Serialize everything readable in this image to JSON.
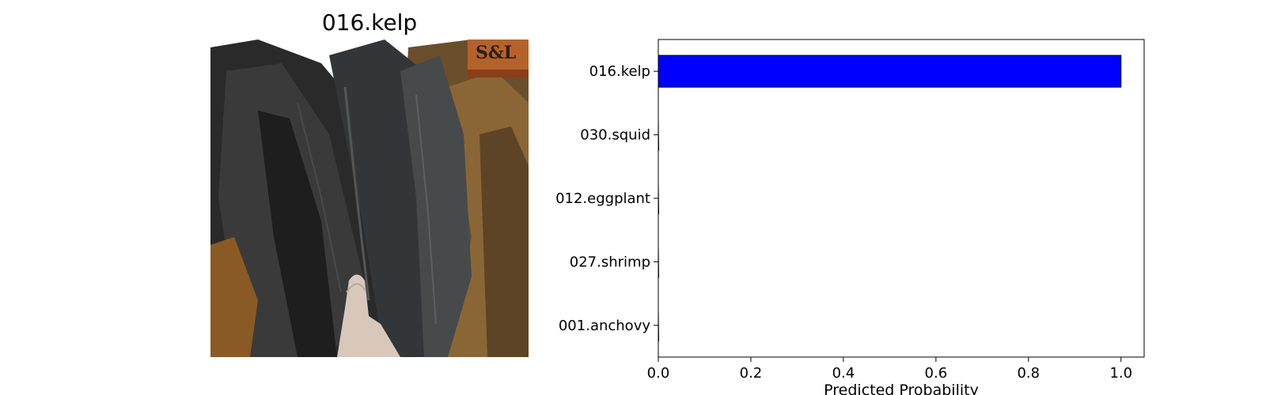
{
  "image_panel": {
    "title": "016.kelp",
    "photo_subject": "dried kelp sheets",
    "logo_text": "S&L",
    "colors": {
      "kelp_dark": "#2b2b2b",
      "kelp_brown": "#7a5a32",
      "hand": "#d8c8bc",
      "logo_bg": "#b5622a"
    }
  },
  "chart_data": {
    "type": "bar",
    "orientation": "horizontal",
    "categories": [
      "016.kelp",
      "030.squid",
      "012.eggplant",
      "027.shrimp",
      "001.anchovy"
    ],
    "values": [
      1.0,
      0.0,
      0.0,
      0.0,
      0.0
    ],
    "xlabel": "Predicted Probability",
    "xlim": [
      0,
      1.05
    ],
    "xticks": [
      0.0,
      0.2,
      0.4,
      0.6,
      0.8,
      1.0
    ],
    "xtick_labels": [
      "0.0",
      "0.2",
      "0.4",
      "0.6",
      "0.8",
      "1.0"
    ],
    "bar_color": "#0000ff",
    "bar_edge_color": "#000000",
    "grid": false
  }
}
